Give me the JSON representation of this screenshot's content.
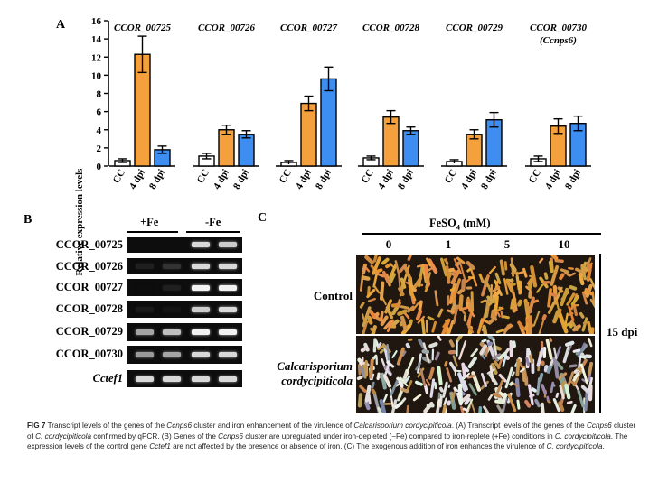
{
  "panel_a": {
    "letter": "A",
    "chart_data": {
      "type": "bar",
      "ylabel": "Relative expression levels",
      "ylim": [
        0,
        16
      ],
      "yticks": [
        0,
        2,
        4,
        6,
        8,
        10,
        12,
        14,
        16
      ],
      "categories": [
        "CC",
        "4 dpi",
        "8 dpi"
      ],
      "genes": [
        {
          "name": "CCOR_00725",
          "sub": "",
          "values": [
            0.6,
            12.3,
            1.8
          ],
          "errors": [
            0.2,
            2.0,
            0.4
          ]
        },
        {
          "name": "CCOR_00726",
          "sub": "",
          "values": [
            1.1,
            4.0,
            3.5
          ],
          "errors": [
            0.3,
            0.5,
            0.4
          ]
        },
        {
          "name": "CCOR_00727",
          "sub": "",
          "values": [
            0.4,
            6.9,
            9.6
          ],
          "errors": [
            0.2,
            0.8,
            1.3
          ]
        },
        {
          "name": "CCOR_00728",
          "sub": "",
          "values": [
            0.9,
            5.4,
            3.9
          ],
          "errors": [
            0.2,
            0.7,
            0.4
          ]
        },
        {
          "name": "CCOR_00729",
          "sub": "",
          "values": [
            0.5,
            3.5,
            5.1
          ],
          "errors": [
            0.2,
            0.5,
            0.8
          ]
        },
        {
          "name": "CCOR_00730",
          "sub": "(Ccnps6)",
          "values": [
            0.8,
            4.4,
            4.7
          ],
          "errors": [
            0.3,
            0.8,
            0.8
          ]
        }
      ],
      "colors": [
        "#ffffff",
        "#f4a03c",
        "#3d8ef0"
      ]
    }
  },
  "panel_b": {
    "letter": "B",
    "header_fe_plus": "+Fe",
    "header_fe_minus": "-Fe",
    "genes": [
      "CCOR_00725",
      "CCOR_00726",
      "CCOR_00727",
      "CCOR_00728",
      "CCOR_00729",
      "CCOR_00730",
      "Cctef1"
    ],
    "band_intensity": [
      [
        0.0,
        0.0,
        0.85,
        0.8
      ],
      [
        0.12,
        0.2,
        0.85,
        0.85
      ],
      [
        0.05,
        0.12,
        0.95,
        0.95
      ],
      [
        0.1,
        0.08,
        0.8,
        0.85
      ],
      [
        0.65,
        0.75,
        0.95,
        0.95
      ],
      [
        0.6,
        0.65,
        0.85,
        0.85
      ],
      [
        0.85,
        0.85,
        0.85,
        0.85
      ]
    ]
  },
  "panel_c": {
    "letter": "C",
    "fe_label": "FeSO",
    "fe_sub": "4",
    "fe_unit": "(mM)",
    "concentrations": [
      "0",
      "1",
      "5",
      "10"
    ],
    "row_control": "Control",
    "row_infected_line1": "Calcarisporium",
    "row_infected_line2": "cordycipiticola",
    "time_label": "15 dpi"
  },
  "caption": {
    "fig": "FIG 7",
    "t1": " Transcript levels of the genes of the ",
    "i1": "Ccnps6",
    "t2": " cluster and iron enhancement of the virulence of ",
    "i2": "Calcarisporium cordycipiticola",
    "t3": ". (A) Transcript levels of the genes of the ",
    "i3": "Ccnps6",
    "t4": " cluster of ",
    "i4": "C. cordycipiticola",
    "t5": " confirmed by qPCR. (B) Genes of the ",
    "i5": "Ccnps6",
    "t6": " cluster are upregulated under iron-depleted (−Fe) compared to iron-replete (+Fe) conditions in ",
    "i6": "C. cordycipiticola",
    "t7": ". The expression levels of the control gene ",
    "i7": "Cctef1",
    "t8": " are not affected by the presence or absence of iron. (C) The exogenous addition of iron enhances the virulence of ",
    "i8": "C. cordycipiticola",
    "t9": "."
  }
}
